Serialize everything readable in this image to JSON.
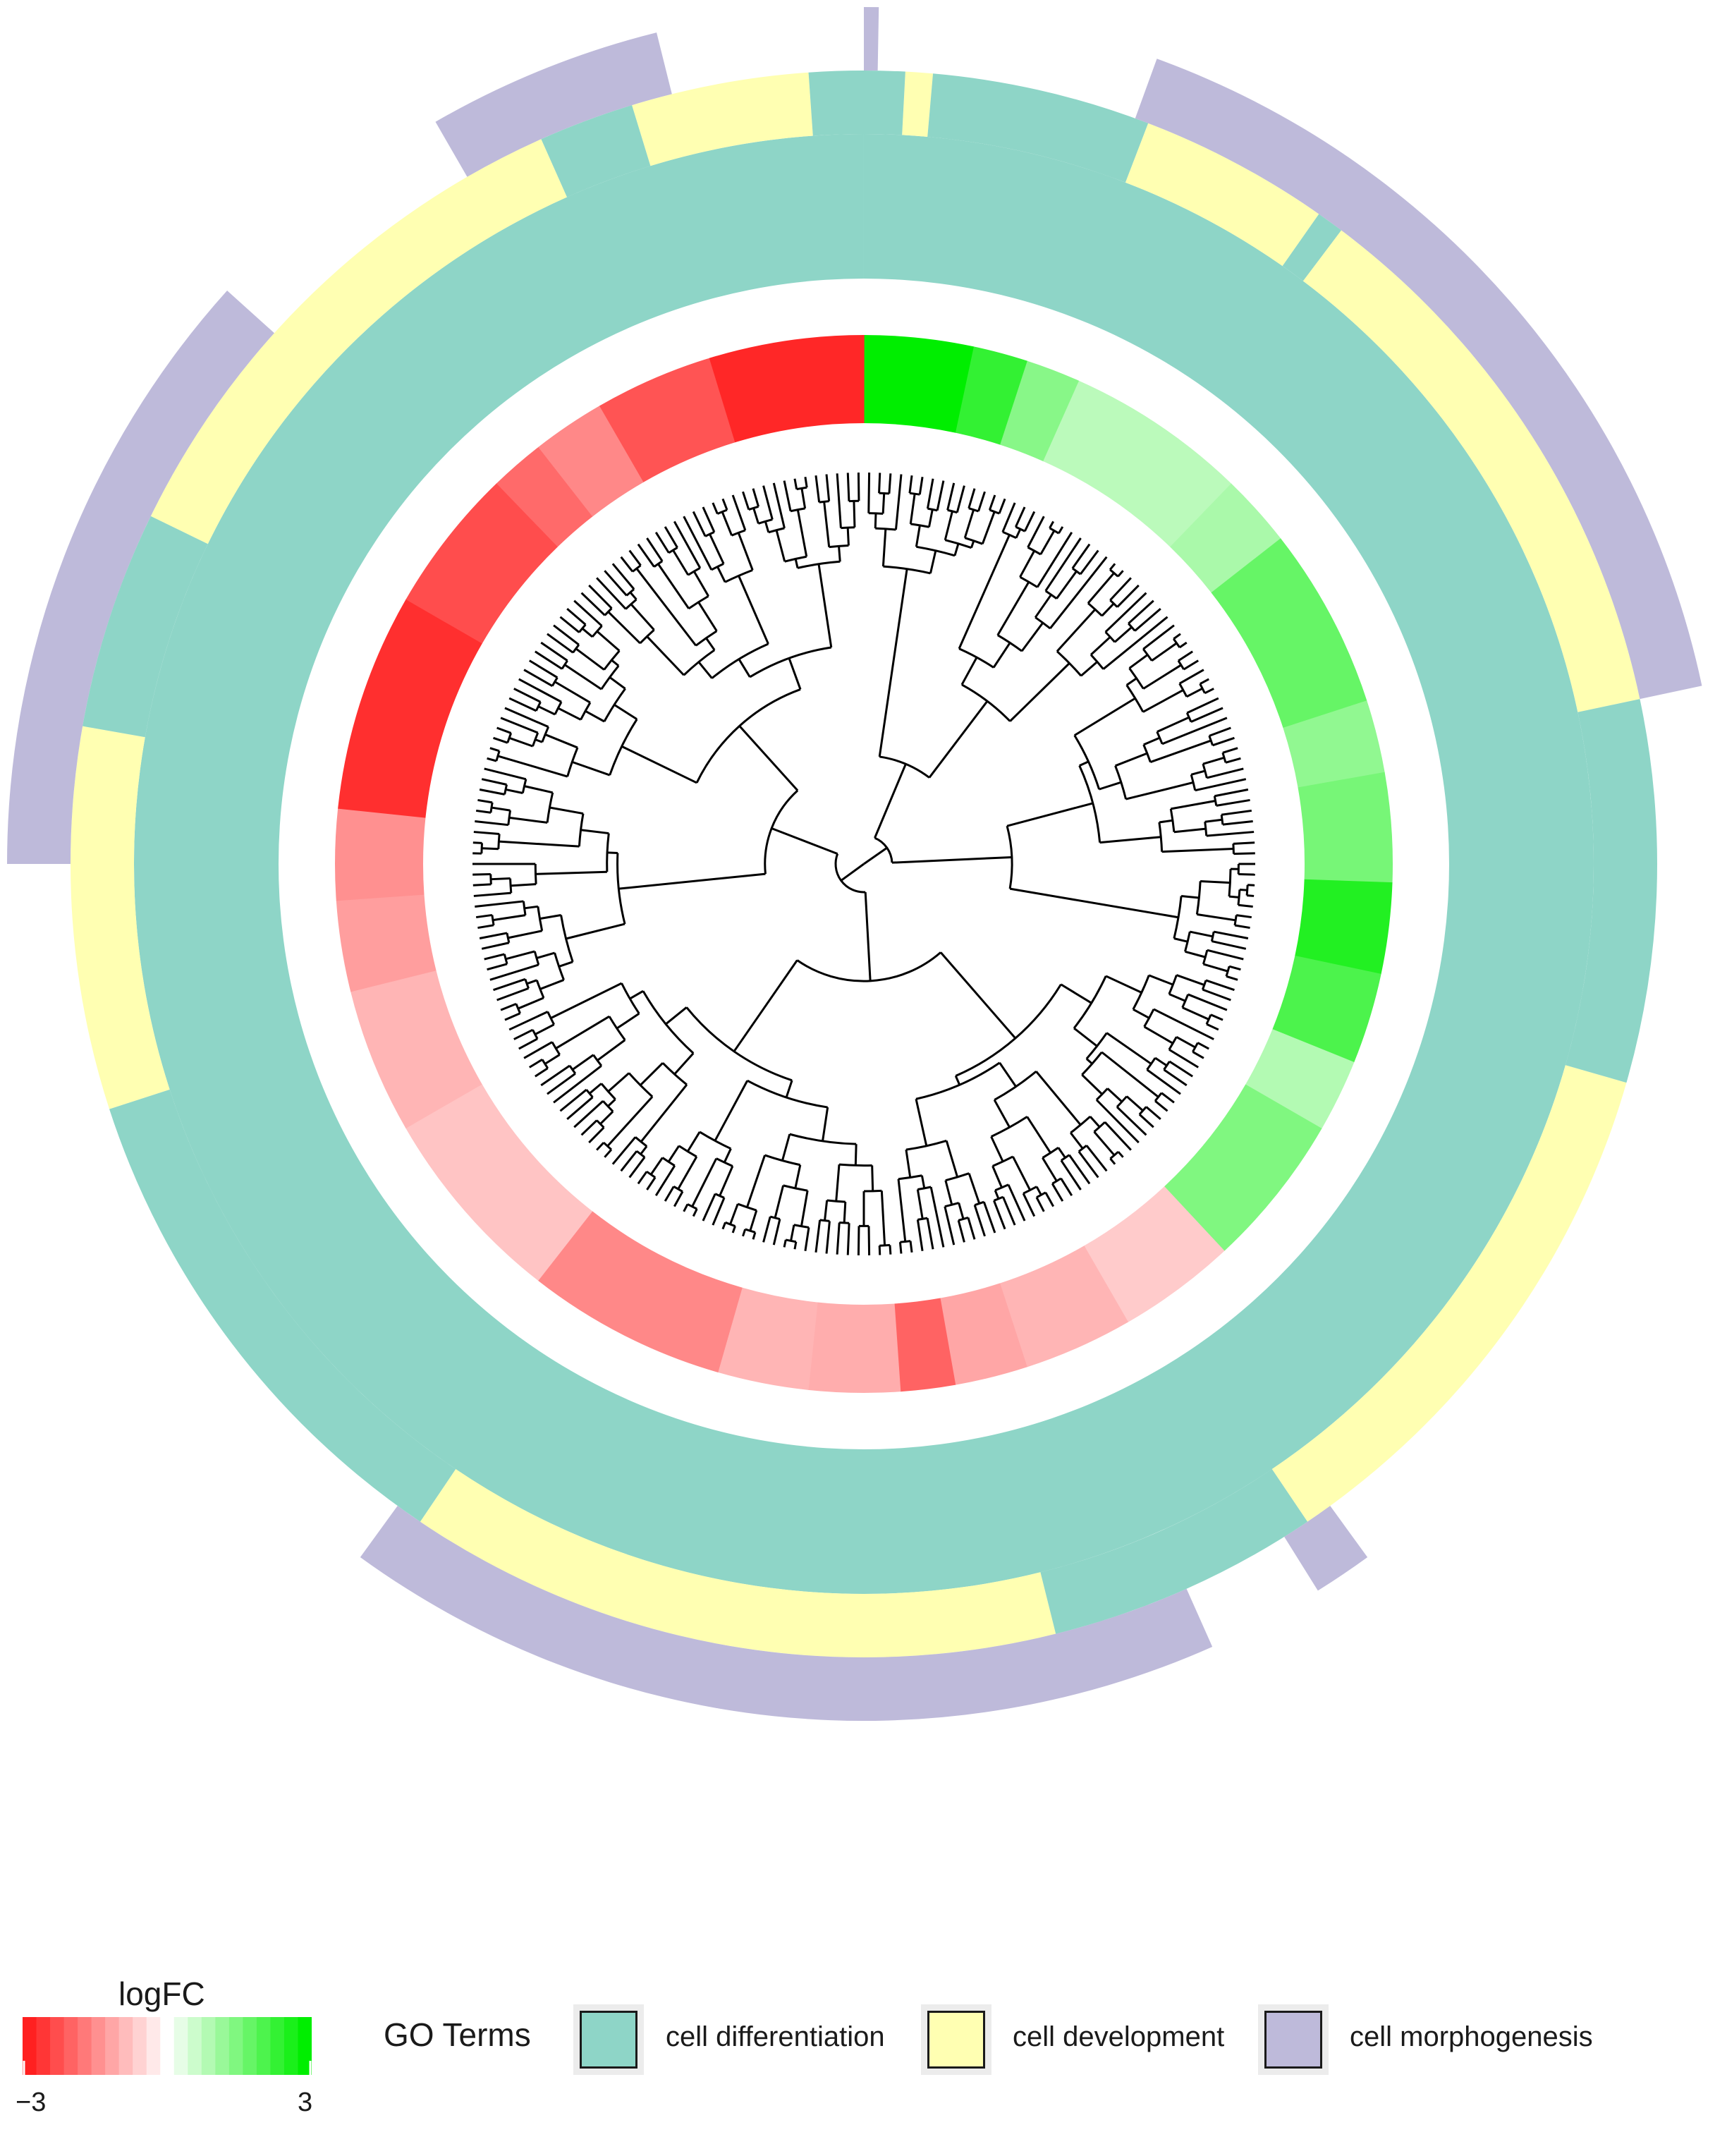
{
  "chart_data": {
    "type": "circular-dendrogram-heatmap",
    "title": "",
    "tree": {
      "leaf_count": 230,
      "layout": "circular",
      "branch_color": "#000000"
    },
    "logfc_ring": {
      "scale_min": -3,
      "scale_max": 3,
      "low_color": "#ff2020",
      "mid_color": "#ffffff",
      "high_color": "#00ee00",
      "segments": [
        {
          "from_deg": 0,
          "to_deg": 12,
          "logfc": 3.0
        },
        {
          "from_deg": 12,
          "to_deg": 18,
          "logfc": 2.4
        },
        {
          "from_deg": 18,
          "to_deg": 24,
          "logfc": 1.4
        },
        {
          "from_deg": 24,
          "to_deg": 44,
          "logfc": 0.8
        },
        {
          "from_deg": 44,
          "to_deg": 52,
          "logfc": 1.0
        },
        {
          "from_deg": 52,
          "to_deg": 72,
          "logfc": 1.8
        },
        {
          "from_deg": 72,
          "to_deg": 80,
          "logfc": 1.3
        },
        {
          "from_deg": 80,
          "to_deg": 92,
          "logfc": 1.6
        },
        {
          "from_deg": 92,
          "to_deg": 102,
          "logfc": 2.6
        },
        {
          "from_deg": 102,
          "to_deg": 112,
          "logfc": 2.1
        },
        {
          "from_deg": 112,
          "to_deg": 120,
          "logfc": 0.9
        },
        {
          "from_deg": 120,
          "to_deg": 137,
          "logfc": 1.5
        },
        {
          "from_deg": 137,
          "to_deg": 150,
          "logfc": -0.7
        },
        {
          "from_deg": 150,
          "to_deg": 162,
          "logfc": -1.0
        },
        {
          "from_deg": 162,
          "to_deg": 170,
          "logfc": -1.2
        },
        {
          "from_deg": 170,
          "to_deg": 176,
          "logfc": -2.1
        },
        {
          "from_deg": 176,
          "to_deg": 186,
          "logfc": -1.1
        },
        {
          "from_deg": 186,
          "to_deg": 196,
          "logfc": -1.0
        },
        {
          "from_deg": 196,
          "to_deg": 218,
          "logfc": -1.6
        },
        {
          "from_deg": 218,
          "to_deg": 240,
          "logfc": -0.8
        },
        {
          "from_deg": 240,
          "to_deg": 256,
          "logfc": -1.0
        },
        {
          "from_deg": 256,
          "to_deg": 266,
          "logfc": -1.3
        },
        {
          "from_deg": 266,
          "to_deg": 276,
          "logfc": -1.5
        },
        {
          "from_deg": 276,
          "to_deg": 300,
          "logfc": -2.8
        },
        {
          "from_deg": 300,
          "to_deg": 316,
          "logfc": -2.4
        },
        {
          "from_deg": 316,
          "to_deg": 322,
          "logfc": -2.0
        },
        {
          "from_deg": 322,
          "to_deg": 330,
          "logfc": -1.6
        },
        {
          "from_deg": 330,
          "to_deg": 343,
          "logfc": -2.3
        },
        {
          "from_deg": 343,
          "to_deg": 360,
          "logfc": -2.9
        }
      ]
    },
    "go_rings": [
      {
        "term": "cell differentiation",
        "segments": [
          [
            0,
            360
          ]
        ]
      },
      {
        "term": "cell development",
        "segments": [
          [
            3,
            5
          ],
          [
            21,
            35
          ],
          [
            37,
            78
          ],
          [
            106,
            146
          ],
          [
            166,
            214
          ],
          [
            252,
            280
          ],
          [
            296,
            336
          ],
          [
            343,
            356
          ]
        ]
      },
      {
        "term": "cell morphogenesis",
        "segments": [
          [
            0,
            1
          ],
          [
            20,
            78
          ],
          [
            144,
            148
          ],
          [
            156,
            216
          ],
          [
            270,
            312
          ],
          [
            330,
            346
          ]
        ]
      }
    ],
    "legends": {
      "logfc": {
        "title": "logFC",
        "min_label": "−3",
        "max_label": "3"
      },
      "go": {
        "title": "GO Terms",
        "entries": [
          {
            "label": "cell differentiation",
            "color": "#8ed5c7"
          },
          {
            "label": "cell development",
            "color": "#ffffb2"
          },
          {
            "label": "cell morphogenesis",
            "color": "#bebada"
          }
        ]
      }
    }
  }
}
